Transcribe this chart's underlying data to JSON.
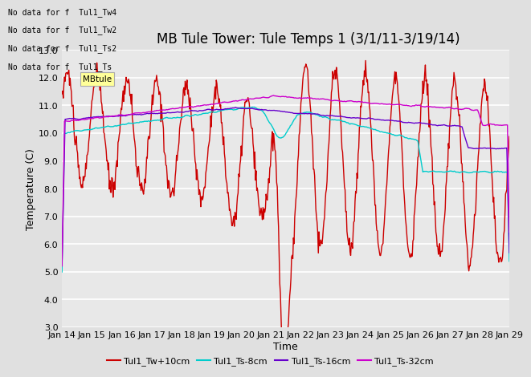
{
  "title": "MB Tule Tower: Tule Temps 1 (3/1/11-3/19/14)",
  "xlabel": "Time",
  "ylabel": "Temperature (C)",
  "ylim": [
    3.0,
    13.0
  ],
  "yticks": [
    3.0,
    4.0,
    5.0,
    6.0,
    7.0,
    8.0,
    9.0,
    10.0,
    11.0,
    12.0,
    13.0
  ],
  "x_tick_labels": [
    "Jan 14",
    "Jan 15",
    "Jan 16",
    "Jan 17",
    "Jan 18",
    "Jan 19",
    "Jan 20",
    "Jan 21",
    "Jan 22",
    "Jan 23",
    "Jan 24",
    "Jan 25",
    "Jan 26",
    "Jan 27",
    "Jan 28",
    "Jan 29"
  ],
  "colors": {
    "Tw": "#cc0000",
    "Ts8": "#00cccc",
    "Ts16": "#6600cc",
    "Ts32": "#cc00cc"
  },
  "legend_labels": [
    "Tul1_Tw+10cm",
    "Tul1_Ts-8cm",
    "Tul1_Ts-16cm",
    "Tul1_Ts-32cm"
  ],
  "no_data_texts": [
    "No data for f  Tul1_Tw4",
    "No data for f  Tul1_Tw2",
    "No data for f  Tul1_Ts2",
    "No data for f  Tul1_Ts"
  ],
  "bg_color": "#e0e0e0",
  "plot_bg_color": "#e8e8e8",
  "title_fontsize": 12,
  "axis_fontsize": 9,
  "tick_fontsize": 8
}
